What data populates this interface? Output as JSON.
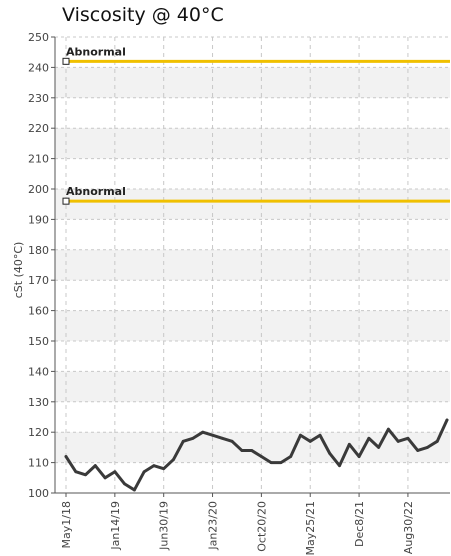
{
  "chart_data": {
    "type": "line",
    "title": "Viscosity @ 40°C",
    "ylabel": "cSt (40°C)",
    "xlabel": "",
    "ylim": [
      100,
      250
    ],
    "y_ticks": [
      100,
      110,
      120,
      130,
      140,
      150,
      160,
      170,
      180,
      190,
      200,
      210,
      220,
      230,
      240,
      250
    ],
    "x_ticks": [
      "May1/18",
      "Jan14/19",
      "Jun30/19",
      "Jan23/20",
      "Oct20/20",
      "May25/21",
      "Dec8/21",
      "Aug30/22"
    ],
    "grid": true,
    "series": [
      {
        "values": [
          112,
          107,
          106,
          109,
          105,
          107,
          103,
          101,
          107,
          109,
          108,
          111,
          117,
          118,
          120,
          119,
          118,
          117,
          114,
          114,
          112,
          110,
          110,
          112,
          119,
          117,
          119,
          113,
          109,
          116,
          112,
          118,
          115,
          121,
          117,
          118,
          114,
          115,
          117,
          124
        ]
      }
    ],
    "thresholds": [
      {
        "label": "Abnormal",
        "value": 242
      },
      {
        "label": "Abnormal",
        "value": 196
      }
    ],
    "colors": {
      "series": "#3a3a3a",
      "threshold": "#f0c000",
      "band": "#f2f2f2",
      "grid": "#c8c8c8"
    }
  }
}
